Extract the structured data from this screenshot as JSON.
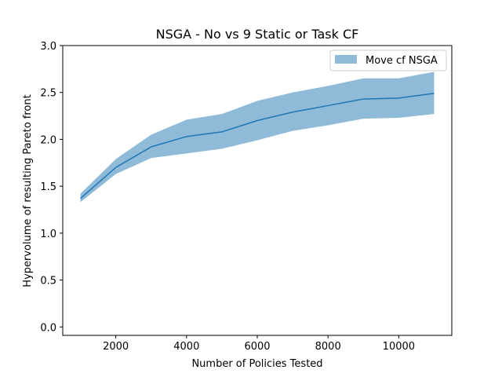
{
  "chart_data": {
    "type": "line",
    "title": "NSGA - No vs 9 Static or Task CF",
    "xlabel": "Number of Policies Tested",
    "ylabel": "Hypervolume of resulting Pareto front",
    "xlim": [
      500,
      11500
    ],
    "ylim": [
      -0.09,
      3.0
    ],
    "xticks": [
      2000,
      4000,
      6000,
      8000,
      10000
    ],
    "xtick_labels": [
      "2000",
      "4000",
      "6000",
      "8000",
      "10000"
    ],
    "yticks": [
      0.0,
      0.5,
      1.0,
      1.5,
      2.0,
      2.5,
      3.0
    ],
    "ytick_labels": [
      "0.0",
      "0.5",
      "1.0",
      "1.5",
      "2.0",
      "2.5",
      "3.0"
    ],
    "grid": false,
    "legend_position": "top-right",
    "colors": {
      "line": "#1f77b4",
      "band": "#1f77b4"
    },
    "series": [
      {
        "name": "Move cf NSGA",
        "x": [
          1000,
          2000,
          3000,
          4000,
          5000,
          6000,
          7000,
          8000,
          9000,
          10000,
          11000
        ],
        "mean": [
          1.37,
          1.7,
          1.92,
          2.03,
          2.08,
          2.2,
          2.29,
          2.36,
          2.43,
          2.44,
          2.49
        ],
        "lower": [
          1.33,
          1.63,
          1.8,
          1.85,
          1.9,
          1.99,
          2.09,
          2.15,
          2.22,
          2.23,
          2.27
        ],
        "upper": [
          1.42,
          1.79,
          2.05,
          2.21,
          2.27,
          2.41,
          2.5,
          2.57,
          2.65,
          2.65,
          2.72
        ]
      }
    ]
  }
}
